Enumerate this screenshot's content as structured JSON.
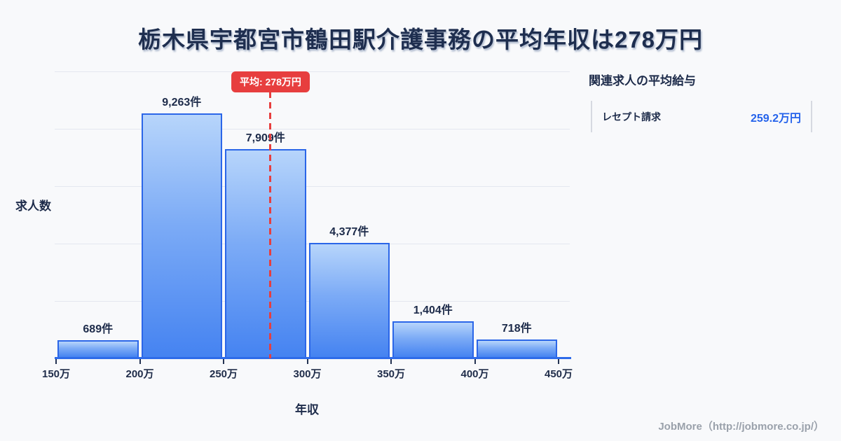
{
  "title": "栃木県宇都宮市鶴田駅介護事務の平均年収は278万円",
  "chart_data": {
    "type": "bar",
    "title": "栃木県宇都宮市鶴田駅介護事務の平均年収は278万円",
    "categories": [
      "150万-200万",
      "200万-250万",
      "250万-300万",
      "300万-350万",
      "350万-400万",
      "400万-450万"
    ],
    "values": [
      689,
      9263,
      7909,
      4377,
      1404,
      718
    ],
    "bar_labels": [
      "689件",
      "9,263件",
      "7,909件",
      "4,377件",
      "1,404件",
      "718件"
    ],
    "x_ticks": [
      "150万",
      "200万",
      "250万",
      "300万",
      "350万",
      "400万",
      "450万"
    ],
    "x_range": [
      150,
      450
    ],
    "xlabel": "年収",
    "ylabel": "求人数",
    "grid": true,
    "legend": "none",
    "average_marker": {
      "value": 278,
      "label": "平均: 278万円"
    },
    "colors": {
      "bar_gradient_top": "#b7d5fb",
      "bar_gradient_bottom": "#4583f1",
      "bar_border": "#2b66e8",
      "axis_line": "#2e6be9",
      "average_red": "#e73e3e",
      "text_dark": "#1d2b4a",
      "value_blue": "#2563eb",
      "background": "#f8f9fb"
    }
  },
  "side_panel": {
    "heading": "関連求人の平均給与",
    "rows": [
      {
        "label": "レセプト請求",
        "value": "259.2万円"
      }
    ]
  },
  "footer": {
    "credit": "JobMore（http://jobmore.co.jp/）"
  }
}
